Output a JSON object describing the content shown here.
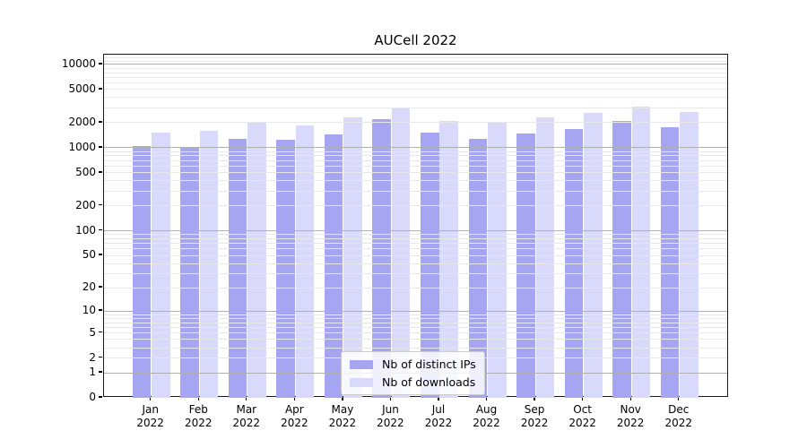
{
  "title": "AUCell 2022",
  "chart_data": {
    "type": "bar",
    "title": "AUCell 2022",
    "xlabel": "",
    "ylabel": "",
    "yscale": "symlog",
    "ylim": [
      0,
      13000
    ],
    "grid": "both",
    "grid_over_bars": true,
    "legend_position": "lower center",
    "yticks": [
      10000,
      5000,
      2000,
      1000,
      500,
      200,
      100,
      50,
      20,
      10,
      5,
      2,
      1,
      0
    ],
    "ytick_labels": [
      "10000",
      "5000",
      "2000",
      "1000",
      "500",
      "200",
      "100",
      "50",
      "20",
      "10",
      "5",
      "2",
      "1",
      "0"
    ],
    "gridline_major_values": [
      1,
      10,
      100,
      1000,
      10000
    ],
    "categories": [
      "Jan 2022",
      "Feb 2022",
      "Mar 2022",
      "Apr 2022",
      "May 2022",
      "Jun 2022",
      "Jul 2022",
      "Aug 2022",
      "Sep 2022",
      "Oct 2022",
      "Nov 2022",
      "Dec 2022"
    ],
    "months": [
      "Jan",
      "Feb",
      "Mar",
      "Apr",
      "May",
      "Jun",
      "Jul",
      "Aug",
      "Sep",
      "Oct",
      "Nov",
      "Dec"
    ],
    "year": "2022",
    "series": [
      {
        "name": "Nb of distinct IPs",
        "color": "#a5a5f2",
        "values": [
          1050,
          1020,
          1290,
          1260,
          1460,
          2210,
          1510,
          1290,
          1470,
          1700,
          2080,
          1760
        ]
      },
      {
        "name": "Nb of downloads",
        "color": "#d9d9fb",
        "values": [
          1520,
          1590,
          2030,
          1870,
          2340,
          2950,
          2100,
          2070,
          2300,
          2630,
          3130,
          2690
        ]
      }
    ]
  },
  "legend": {
    "items": [
      {
        "label": "Nb of distinct IPs",
        "color": "#a5a5f2"
      },
      {
        "label": "Nb of downloads",
        "color": "#d9d9fb"
      }
    ]
  },
  "colors": {
    "grid_major": "#b0b0b0",
    "grid_minor": "#e8e8e8",
    "spine": "#1a1a1a",
    "text": "#000000"
  }
}
